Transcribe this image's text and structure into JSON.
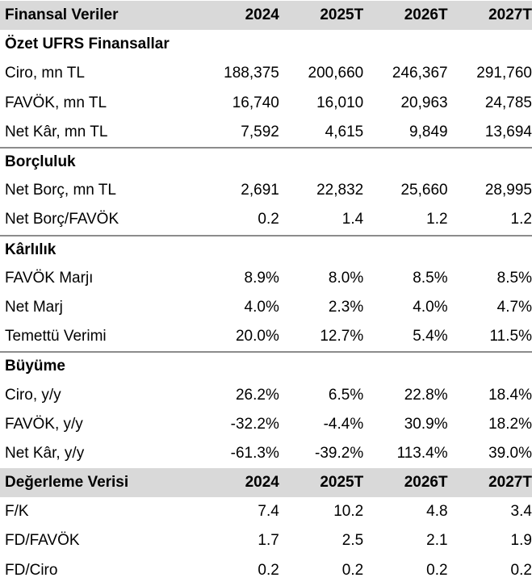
{
  "header": {
    "title": "Finansal Veriler",
    "years": [
      "2024",
      "2025T",
      "2026T",
      "2027T"
    ]
  },
  "sections": [
    {
      "title": "Özet UFRS Finansallar",
      "rows": [
        {
          "label": "Ciro, mn TL",
          "values": [
            "188,375",
            "200,660",
            "246,367",
            "291,760"
          ]
        },
        {
          "label": "FAVÖK, mn TL",
          "values": [
            "16,740",
            "16,010",
            "20,963",
            "24,785"
          ]
        },
        {
          "label": "Net Kâr, mn TL",
          "values": [
            "7,592",
            "4,615",
            "9,849",
            "13,694"
          ]
        }
      ]
    },
    {
      "title": "Borçluluk",
      "rows": [
        {
          "label": "Net Borç, mn TL",
          "values": [
            "2,691",
            "22,832",
            "25,660",
            "28,995"
          ]
        },
        {
          "label": "Net Borç/FAVÖK",
          "values": [
            "0.2",
            "1.4",
            "1.2",
            "1.2"
          ]
        }
      ]
    },
    {
      "title": "Kârlılık",
      "rows": [
        {
          "label": "FAVÖK Marjı",
          "values": [
            "8.9%",
            "8.0%",
            "8.5%",
            "8.5%"
          ]
        },
        {
          "label": "Net Marj",
          "values": [
            "4.0%",
            "2.3%",
            "4.0%",
            "4.7%"
          ]
        },
        {
          "label": "Temettü Verimi",
          "values": [
            "20.0%",
            "12.7%",
            "5.4%",
            "11.5%"
          ]
        }
      ]
    },
    {
      "title": "Büyüme",
      "rows": [
        {
          "label": "Ciro, y/y",
          "values": [
            "26.2%",
            "6.5%",
            "22.8%",
            "18.4%"
          ]
        },
        {
          "label": "FAVÖK, y/y",
          "values": [
            "-32.2%",
            "-4.4%",
            "30.9%",
            "18.2%"
          ]
        },
        {
          "label": "Net Kâr, y/y",
          "values": [
            "-61.3%",
            "-39.2%",
            "113.4%",
            "39.0%"
          ]
        }
      ]
    }
  ],
  "valuation": {
    "title": "Değerleme Verisi",
    "years": [
      "2024",
      "2025T",
      "2026T",
      "2027T"
    ],
    "rows": [
      {
        "label": "F/K",
        "values": [
          "7.4",
          "10.2",
          "4.8",
          "3.4"
        ]
      },
      {
        "label": "FD/FAVÖK",
        "values": [
          "1.7",
          "2.5",
          "2.1",
          "1.9"
        ]
      },
      {
        "label": "FD/Ciro",
        "values": [
          "0.2",
          "0.2",
          "0.2",
          "0.2"
        ]
      }
    ]
  },
  "colors": {
    "header_bg": "#d9d9d9",
    "separator": "#8c8c8c"
  }
}
